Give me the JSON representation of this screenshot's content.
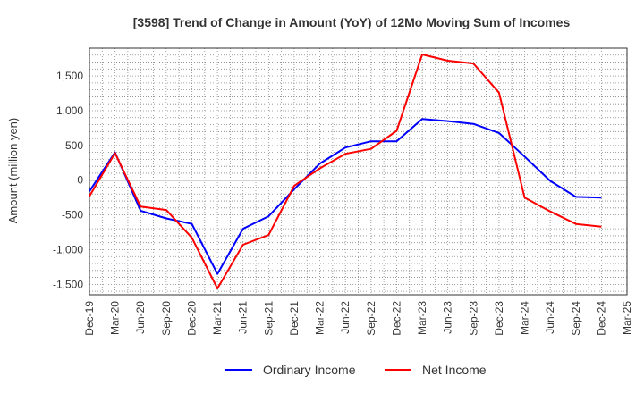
{
  "chart_data": {
    "type": "line",
    "title": "[3598]  Trend of Change in Amount (YoY) of 12Mo Moving Sum of Incomes",
    "xlabel": "",
    "ylabel": "Amount (million yen)",
    "categories": [
      "Dec-19",
      "Mar-20",
      "Jun-20",
      "Sep-20",
      "Dec-20",
      "Mar-21",
      "Jun-21",
      "Sep-21",
      "Dec-21",
      "Mar-22",
      "Jun-22",
      "Sep-22",
      "Dec-22",
      "Mar-23",
      "Jun-23",
      "Sep-23",
      "Dec-23",
      "Mar-24",
      "Jun-24",
      "Sep-24",
      "Dec-24",
      "Mar-25"
    ],
    "yticks": [
      -1500,
      -1000,
      -500,
      0,
      500,
      1000,
      1500
    ],
    "ytick_labels": [
      "-1,500",
      "-1,000",
      "-500",
      "0",
      "500",
      "1,000",
      "1,500"
    ],
    "ylim": [
      -1650,
      1900
    ],
    "grid": true,
    "legend_position": "bottom",
    "series": [
      {
        "name": "Ordinary Income",
        "color": "#0000ff",
        "values": [
          -160,
          400,
          -440,
          -550,
          -630,
          -1350,
          -700,
          -520,
          -130,
          240,
          470,
          560,
          560,
          880,
          850,
          810,
          680,
          340,
          -10,
          -240,
          -250,
          null
        ]
      },
      {
        "name": "Net Income",
        "color": "#ff0000",
        "values": [
          -230,
          390,
          -380,
          -430,
          -830,
          -1560,
          -930,
          -790,
          -80,
          170,
          380,
          450,
          710,
          1810,
          1720,
          1680,
          1260,
          -250,
          -450,
          -630,
          -670,
          null
        ]
      }
    ]
  }
}
